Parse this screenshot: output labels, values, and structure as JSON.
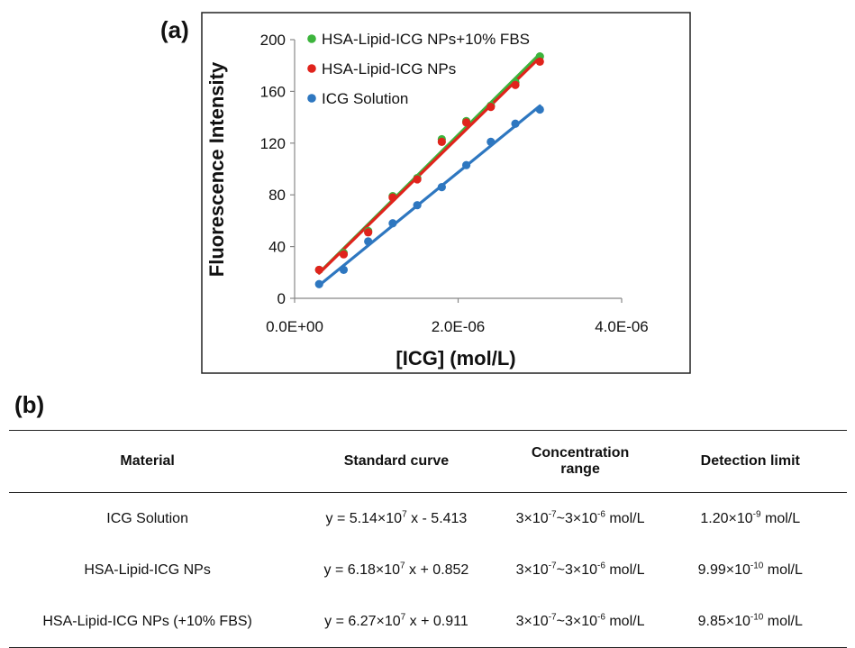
{
  "panel_a_label": "(a)",
  "panel_b_label": "(b)",
  "colors": {
    "green": "#3cb43c",
    "red": "#e0231c",
    "blue": "#2e77c0"
  },
  "chart_data": {
    "type": "scatter",
    "xlabel": "[ICG] (mol/L)",
    "ylabel": "Fluorescence Intensity",
    "xlim": [
      0,
      4e-06
    ],
    "ylim": [
      0,
      200
    ],
    "x_ticks": [
      "0.0E+00",
      "2.0E-06",
      "4.0E-06"
    ],
    "y_ticks": [
      "0",
      "40",
      "80",
      "120",
      "160",
      "200"
    ],
    "grid": false,
    "legend_position": "top-left",
    "x": [
      3e-07,
      6e-07,
      9e-07,
      1.2e-06,
      1.5e-06,
      1.8e-06,
      2.1e-06,
      2.4e-06,
      2.7e-06,
      3e-06
    ],
    "series": [
      {
        "name": "HSA-Lipid-ICG NPs+10% FBS",
        "color": "#3cb43c",
        "values": [
          22,
          35,
          52,
          79,
          93,
          123,
          137,
          149,
          167,
          187
        ],
        "fit": {
          "slope": 62700000.0,
          "intercept": 0.911
        }
      },
      {
        "name": "HSA-Lipid-ICG NPs",
        "color": "#e0231c",
        "values": [
          22,
          34,
          51,
          78,
          92,
          121,
          136,
          148,
          165,
          183
        ],
        "fit": {
          "slope": 61800000.0,
          "intercept": 0.852
        }
      },
      {
        "name": "ICG Solution",
        "color": "#2e77c0",
        "values": [
          11,
          22,
          44,
          58,
          72,
          86,
          103,
          121,
          135,
          146
        ],
        "fit": {
          "slope": 51400000.0,
          "intercept": -5.413
        }
      }
    ]
  },
  "table": {
    "headers": [
      "Material",
      "Standard curve",
      "Concentration range",
      "Detection limit"
    ],
    "rows": [
      {
        "material": "ICG Solution",
        "curve": {
          "pre": "y = 5.14×10",
          "exp": "7",
          "post": " x - 5.413"
        },
        "range": {
          "a": "3×10",
          "a_exp": "-7",
          "b": "~3×10",
          "b_exp": "-6",
          "unit": " mol/L"
        },
        "limit": {
          "base": "1.20×10",
          "exp": "-9",
          "unit": " mol/L"
        }
      },
      {
        "material": "HSA-Lipid-ICG NPs",
        "curve": {
          "pre": "y = 6.18×10",
          "exp": "7",
          "post": " x + 0.852"
        },
        "range": {
          "a": "3×10",
          "a_exp": "-7",
          "b": "~3×10",
          "b_exp": "-6",
          "unit": " mol/L"
        },
        "limit": {
          "base": "9.99×10",
          "exp": "-10",
          "unit": " mol/L"
        }
      },
      {
        "material": "HSA-Lipid-ICG NPs (+10% FBS)",
        "curve": {
          "pre": "y = 6.27×10",
          "exp": "7",
          "post": " x + 0.911"
        },
        "range": {
          "a": "3×10",
          "a_exp": "-7",
          "b": "~3×10",
          "b_exp": "-6",
          "unit": " mol/L"
        },
        "limit": {
          "base": "9.85×10",
          "exp": "-10",
          "unit": " mol/L"
        }
      }
    ]
  }
}
